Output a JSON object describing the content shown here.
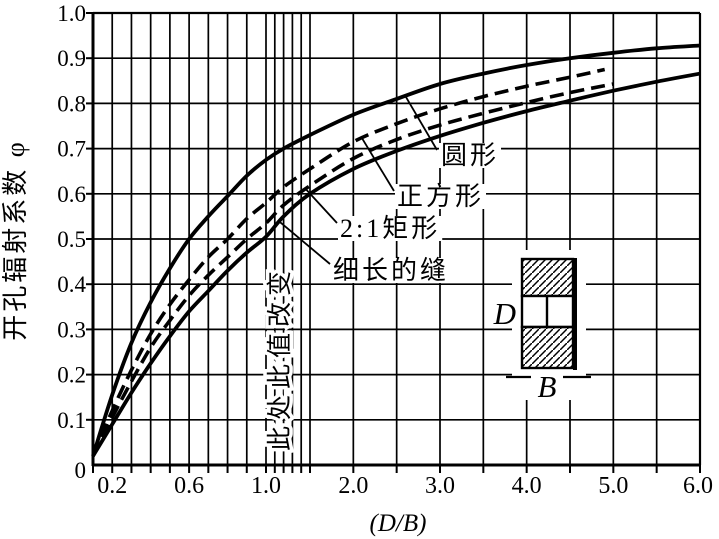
{
  "chart_data": {
    "type": "line",
    "title": "",
    "xlabel": "(D/B)",
    "ylabel": "开孔辐射系数 φ",
    "x_axis": {
      "range": [
        0.1,
        6.0
      ],
      "scale": "nonuniform-compressed-above-1.0",
      "labeled_ticks": [
        "0.2",
        "0.6",
        "1.0",
        "2.0",
        "3.0",
        "4.0",
        "5.0",
        "6.0"
      ],
      "labeled_tick_values": [
        0.2,
        0.6,
        1.0,
        2.0,
        3.0,
        4.0,
        5.0,
        6.0
      ],
      "gridline_values": [
        0.2,
        0.3,
        0.4,
        0.5,
        0.6,
        0.7,
        0.8,
        0.9,
        1.0,
        1.1,
        1.2,
        1.3,
        1.4,
        1.5,
        2.0,
        2.5,
        3.0,
        3.5,
        4.0,
        4.5,
        5.0,
        5.5
      ]
    },
    "y_axis": {
      "range": [
        0,
        1.0
      ],
      "labeled_ticks": [
        "1.0",
        "0.9",
        "0.8",
        "0.7",
        "0.6",
        "0.5",
        "0.4",
        "0.3",
        "0.2",
        "0.1"
      ],
      "labeled_tick_values": [
        1.0,
        0.9,
        0.8,
        0.7,
        0.6,
        0.5,
        0.4,
        0.3,
        0.2,
        0.1
      ],
      "gridline_values": [
        0.1,
        0.2,
        0.3,
        0.4,
        0.5,
        0.6,
        0.7,
        0.8,
        0.9
      ],
      "origin_label": "0"
    },
    "series": [
      {
        "name": "圆形",
        "name_en": "circle",
        "style": "solid",
        "x": [
          0.1,
          0.2,
          0.3,
          0.4,
          0.5,
          0.6,
          0.7,
          0.8,
          0.9,
          1.0,
          1.2,
          1.5,
          2.0,
          2.5,
          3.0,
          3.5,
          4.0,
          4.5,
          5.0,
          5.5,
          6.0
        ],
        "phi": [
          0.02,
          0.155,
          0.27,
          0.36,
          0.435,
          0.5,
          0.55,
          0.595,
          0.64,
          0.675,
          0.7,
          0.73,
          0.775,
          0.81,
          0.843,
          0.866,
          0.885,
          0.9,
          0.912,
          0.922,
          0.928
        ]
      },
      {
        "name": "正方形",
        "name_en": "square",
        "style": "dashed",
        "x": [
          0.1,
          0.2,
          0.3,
          0.4,
          0.5,
          0.6,
          0.7,
          0.8,
          0.9,
          1.0,
          1.2,
          1.5,
          2.0,
          2.5,
          3.0,
          3.5,
          4.0,
          4.5,
          4.9
        ],
        "phi": [
          0.02,
          0.12,
          0.21,
          0.29,
          0.355,
          0.41,
          0.46,
          0.5,
          0.545,
          0.58,
          0.615,
          0.655,
          0.715,
          0.755,
          0.788,
          0.815,
          0.838,
          0.858,
          0.875
        ]
      },
      {
        "name": "2:1矩形",
        "name_en": "rect-2to1",
        "style": "dashed",
        "x": [
          0.1,
          0.2,
          0.3,
          0.4,
          0.5,
          0.6,
          0.7,
          0.8,
          0.9,
          1.0,
          1.2,
          1.5,
          2.0,
          2.5,
          3.0,
          3.5,
          4.0,
          4.5,
          5.0
        ],
        "phi": [
          0.02,
          0.105,
          0.185,
          0.26,
          0.32,
          0.375,
          0.42,
          0.46,
          0.5,
          0.535,
          0.575,
          0.618,
          0.678,
          0.72,
          0.752,
          0.778,
          0.802,
          0.824,
          0.843
        ]
      },
      {
        "name": "细长的缝",
        "name_en": "long-slit",
        "style": "solid",
        "x": [
          0.1,
          0.2,
          0.3,
          0.4,
          0.5,
          0.6,
          0.7,
          0.8,
          0.9,
          1.0,
          1.2,
          1.5,
          2.0,
          2.5,
          3.0,
          3.5,
          4.0,
          4.5,
          5.0,
          5.5,
          6.0
        ],
        "phi": [
          0.02,
          0.09,
          0.16,
          0.225,
          0.285,
          0.34,
          0.385,
          0.43,
          0.47,
          0.505,
          0.55,
          0.6,
          0.655,
          0.695,
          0.728,
          0.757,
          0.783,
          0.806,
          0.828,
          0.848,
          0.866
        ]
      }
    ],
    "annotations": {
      "scale_change_note": "此处此值改变",
      "curve_labels": [
        "圆形",
        "正方形",
        "2:1矩形",
        "细长的缝"
      ]
    },
    "inset": {
      "depth_label": "D",
      "width_label": "B",
      "description": "wall cross-section: hatched wall blocks above and below an opening"
    },
    "legend_position": "inline-labels",
    "grid": true
  }
}
